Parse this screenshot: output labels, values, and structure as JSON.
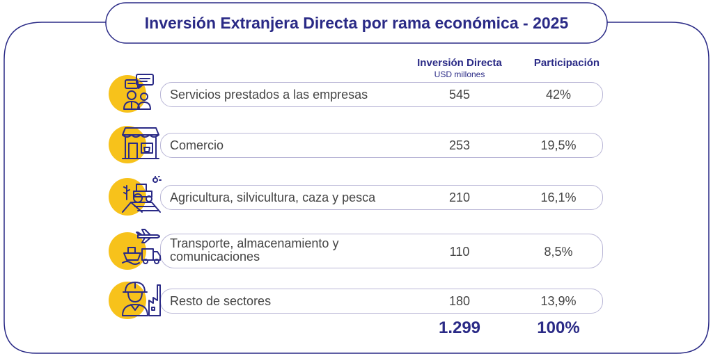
{
  "title": "Inversión Extranjera Directa por rama económica - 2025",
  "colors": {
    "navy": "#2a2a86",
    "accent_yellow": "#f7c21b",
    "border": "#b9b6d6",
    "text": "#444444"
  },
  "headers": {
    "investment": "Inversión Directa",
    "investment_unit": "USD millones",
    "share": "Participación"
  },
  "rows": [
    {
      "sector": "Servicios prestados a las empresas",
      "value": "545",
      "share": "42%",
      "icon": "business-services-icon"
    },
    {
      "sector": "Comercio",
      "value": "253",
      "share": "19,5%",
      "icon": "storefront-icon"
    },
    {
      "sector": "Agricultura, silvicultura, caza y pesca",
      "value": "210",
      "share": "16,1%",
      "icon": "tractor-field-icon"
    },
    {
      "sector": "Transporte, almacenamiento y comunicaciones",
      "value": "110",
      "share": "8,5%",
      "icon": "transport-icon"
    },
    {
      "sector": "Resto de sectores",
      "value": "180",
      "share": "13,9%",
      "icon": "worker-factory-icon"
    }
  ],
  "totals": {
    "value": "1.299",
    "share": "100%"
  },
  "chart_data": {
    "type": "table",
    "title": "Inversión Extranjera Directa por rama económica - 2025",
    "columns": [
      "",
      "Inversión Directa USD millones",
      "Participación"
    ],
    "categories": [
      "Servicios prestados a las empresas",
      "Comercio",
      "Agricultura, silvicultura, caza y pesca",
      "Transporte, almacenamiento y comunicaciones",
      "Resto de sectores"
    ],
    "series": [
      {
        "name": "Inversión Directa",
        "values": [
          545,
          253,
          210,
          110,
          180
        ]
      },
      {
        "name": "Participación",
        "values": [
          42,
          19.5,
          16.1,
          8.5,
          13.9
        ]
      }
    ],
    "total": {
      "value": 1299,
      "share": 100
    }
  }
}
